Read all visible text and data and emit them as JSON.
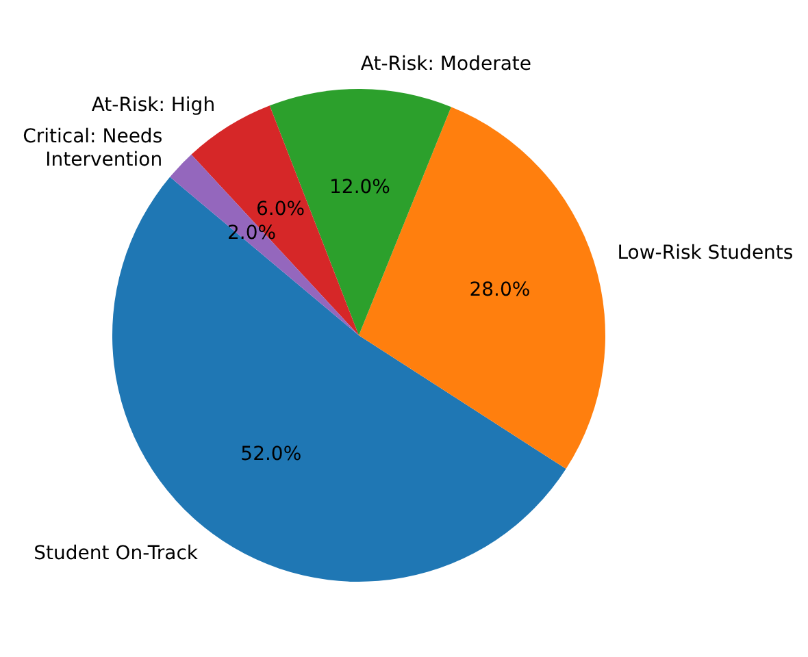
{
  "chart_data": {
    "type": "pie",
    "categories": [
      "Student On-Track",
      "Low-Risk Students",
      "At-Risk: Moderate",
      "At-Risk: High",
      "Critical: Needs\nIntervention"
    ],
    "values": [
      52,
      28,
      12,
      6,
      2
    ],
    "colors": [
      "#1f77b4",
      "#ff7f0e",
      "#2ca02c",
      "#d62728",
      "#9467bd"
    ],
    "value_labels": [
      "52.0%",
      "28.0%",
      "12.0%",
      "6.0%",
      "2.0%"
    ]
  }
}
